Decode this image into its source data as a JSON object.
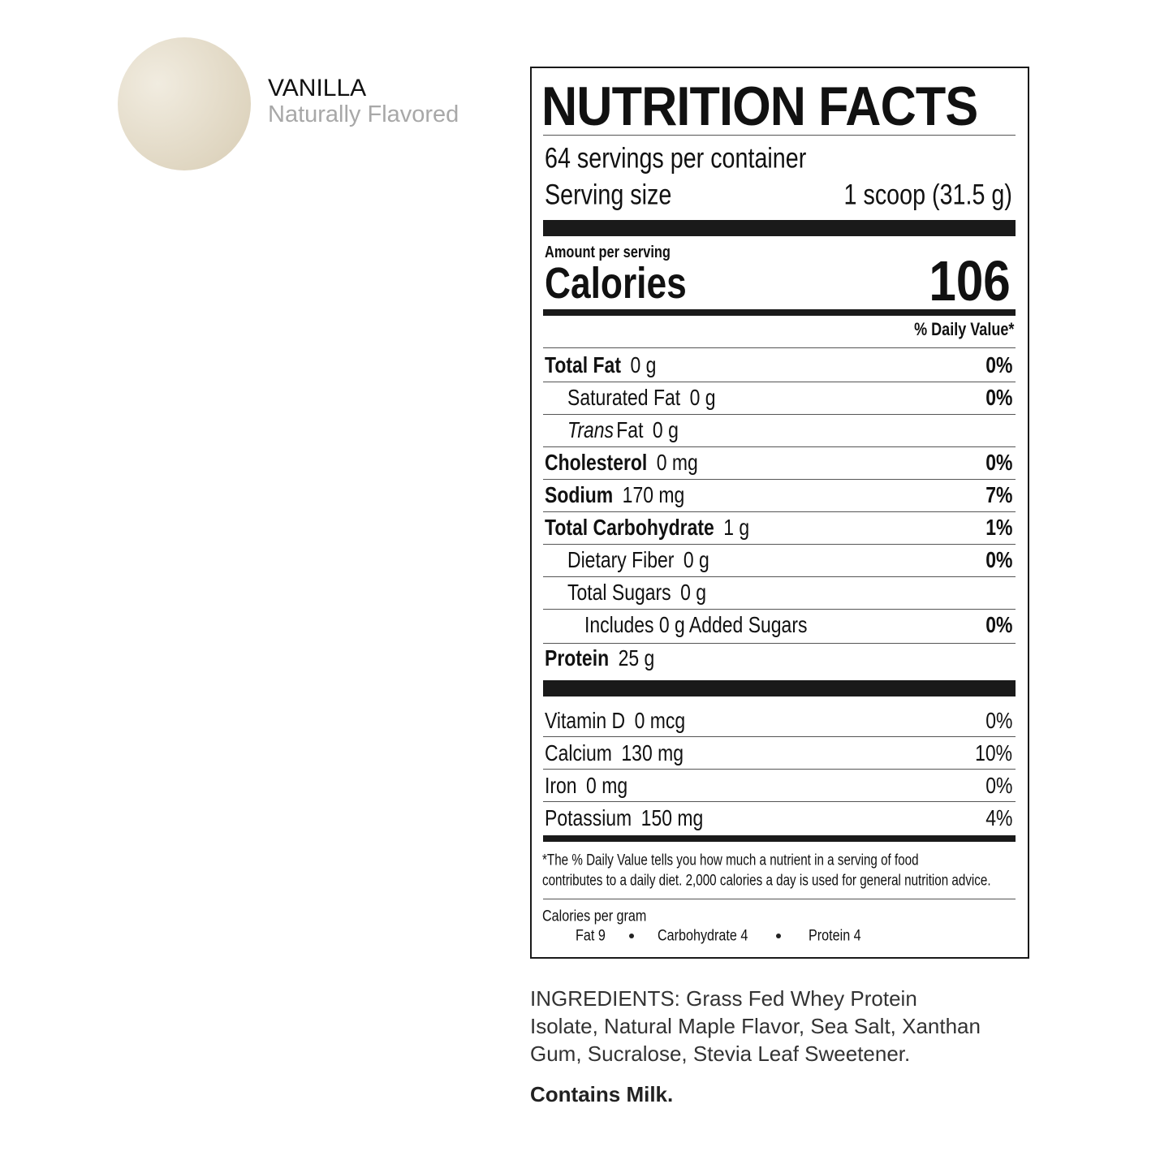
{
  "flavor": {
    "name": "VANILLA",
    "subtitle": "Naturally Flavored"
  },
  "label": {
    "title": "NUTRITION FACTS",
    "servings": "64 servings per container",
    "serving_size": {
      "label": "Serving size",
      "value": "1 scoop (31.5 g)"
    },
    "amount_per_serving": "Amount per serving",
    "calories": {
      "label": "Calories",
      "value": "106"
    },
    "daily_value_header": "% Daily Value*",
    "nutrients": [
      {
        "name": "Total Fat",
        "amount": "0 g",
        "dv": "0%",
        "bold": true,
        "indent": 0
      },
      {
        "name": "Saturated Fat",
        "amount": "0 g",
        "dv": "0%",
        "bold": false,
        "indent": 1
      },
      {
        "name_prefix": "Trans",
        "name": "Fat",
        "amount": "0 g",
        "bold": false,
        "indent": 1
      },
      {
        "name": "Cholesterol",
        "amount": "0 mg",
        "dv": "0%",
        "bold": true,
        "indent": 0
      },
      {
        "name": "Sodium",
        "amount": "170 mg",
        "dv": "7%",
        "bold": true,
        "indent": 0
      },
      {
        "name": "Total Carbohydrate",
        "amount": "1 g",
        "dv": "1%",
        "bold": true,
        "indent": 0
      },
      {
        "name": "Dietary Fiber",
        "amount": "0 g",
        "dv": "0%",
        "bold": false,
        "indent": 1
      },
      {
        "name": "Total Sugars",
        "amount": "0 g",
        "bold": false,
        "indent": 1
      },
      {
        "name": "Includes 0 g Added Sugars",
        "dv": "0%",
        "bold": false,
        "indent": 2
      },
      {
        "name": "Protein",
        "amount": "25 g",
        "bold": true,
        "indent": 0
      }
    ],
    "vitamins": [
      {
        "name": "Vitamin D",
        "amount": "0 mcg",
        "dv": "0%"
      },
      {
        "name": "Calcium",
        "amount": "130 mg",
        "dv": "10%"
      },
      {
        "name": "Iron",
        "amount": "0 mg",
        "dv": "0%"
      },
      {
        "name": "Potassium",
        "amount": "150 mg",
        "dv": "4%"
      }
    ],
    "footnote": [
      "*The % Daily Value tells you how much a nutrient in a serving of food",
      "contributes to a daily diet. 2,000 calories a day is used for general nutrition advice."
    ],
    "calories_per_gram": {
      "label": "Calories per gram",
      "items": [
        "Fat 9",
        "Carbohydrate 4",
        "Protein 4"
      ]
    }
  },
  "ingredients": "INGREDIENTS: Grass Fed Whey Protein Isolate, Natural Maple Flavor, Sea Salt, Xanthan Gum, Sucralose, Stevia Leaf Sweetener.",
  "allergens": "Contains Milk."
}
